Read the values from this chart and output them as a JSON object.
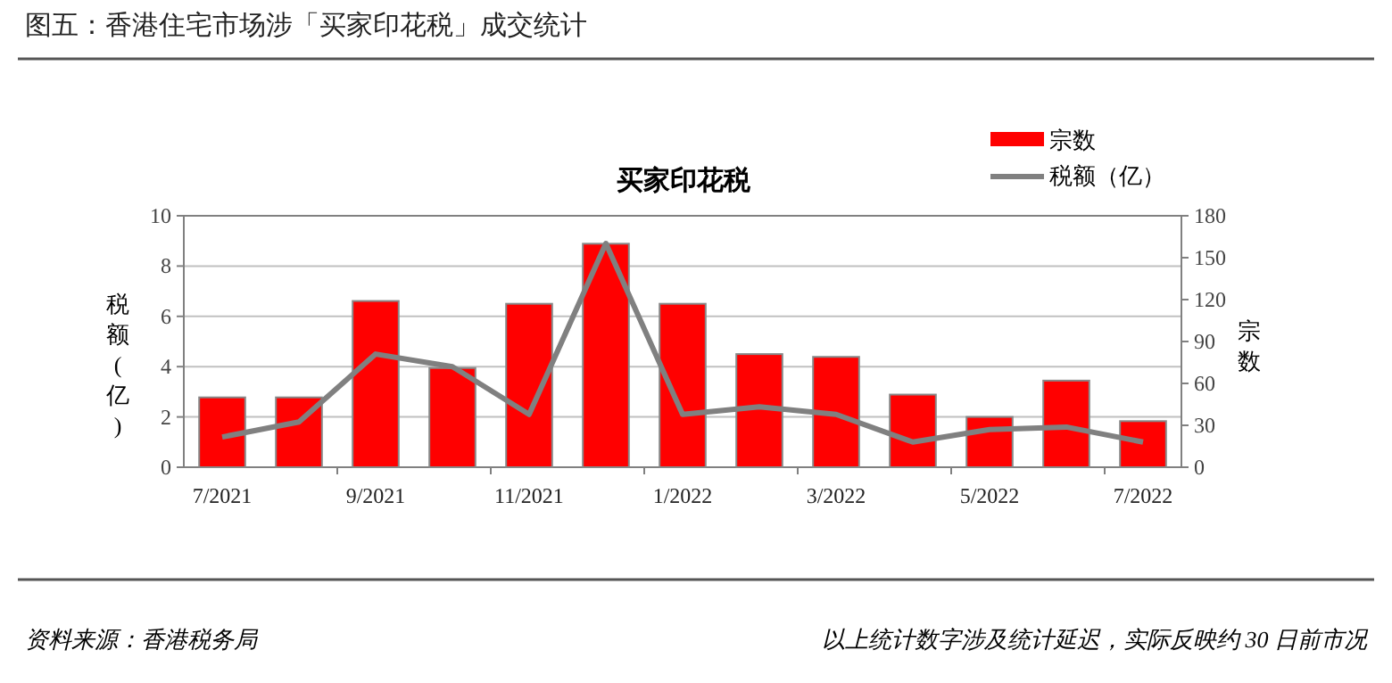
{
  "chart_data": {
    "type": "bar",
    "title": "图五：香港住宅市场涉「买家印花税」成交统计",
    "subtitle": "买家印花税",
    "ylabel": "税额(亿)",
    "y2label": "宗数",
    "categories": [
      "7/2021",
      null,
      "9/2021",
      null,
      "11/2021",
      null,
      "1/2022",
      null,
      "3/2022",
      null,
      "5/2022",
      null,
      "7/2022"
    ],
    "series": [
      {
        "name": "宗数",
        "axis": "y2",
        "color": "#ff0000",
        "values": [
          50,
          50,
          119,
          71,
          117,
          160,
          117,
          81,
          79,
          52,
          36,
          62,
          33
        ]
      },
      {
        "name": "税额（亿）",
        "type": "line",
        "axis": "y",
        "color": "#808080",
        "values": [
          1.2,
          1.8,
          4.5,
          4.0,
          2.1,
          8.9,
          2.1,
          2.4,
          2.1,
          1.0,
          1.5,
          1.6,
          1.0
        ]
      }
    ],
    "ylim": [
      0,
      10
    ],
    "yticks": [
      0,
      2,
      4,
      6,
      8,
      10
    ],
    "y2lim": [
      0,
      180
    ],
    "y2ticks": [
      0,
      30,
      60,
      90,
      120,
      150,
      180
    ],
    "grid": "y",
    "legend": "top right",
    "annotations": [
      "资料来源：香港税务局",
      "以上统计数字涉及统计延迟，实际反映约 30 日前市况"
    ]
  }
}
